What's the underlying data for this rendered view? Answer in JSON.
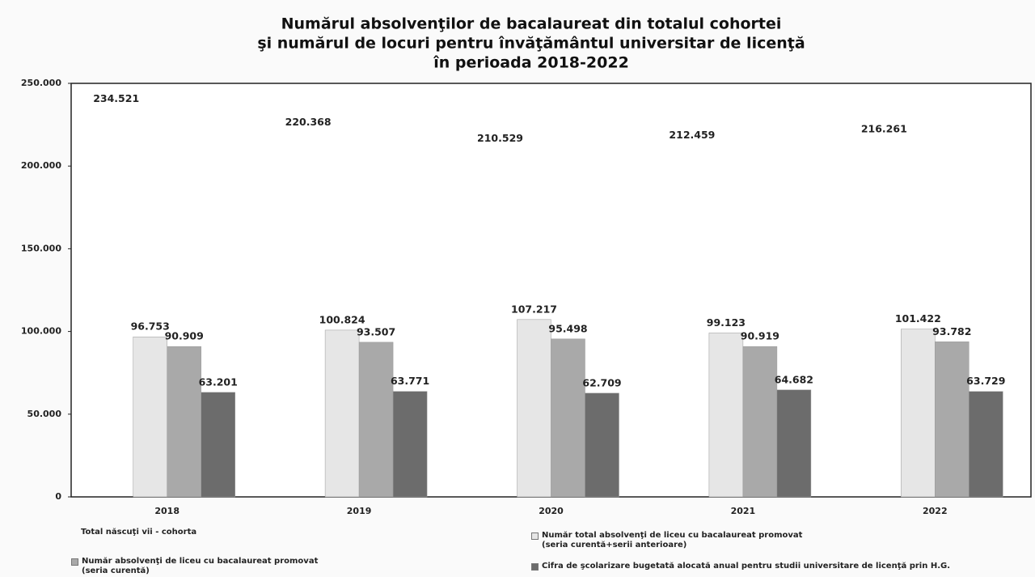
{
  "chart_data": {
    "type": "bar",
    "title": [
      "Numărul absolvenţilor de bacalaureat din totalul cohortei",
      "şi numărul de locuri pentru învăţământul universitar de licenţă",
      "în perioada 2018-2022"
    ],
    "categories": [
      "2018",
      "2019",
      "2020",
      "2021",
      "2022"
    ],
    "series": [
      {
        "name": "Total născuţi vii - cohorta",
        "color": "none",
        "values": [
          234521,
          220368,
          210529,
          212459,
          216261
        ],
        "value_labels": [
          "234.521",
          "220.368",
          "210.529",
          "212.459",
          "216.261"
        ]
      },
      {
        "name": "Număr total absolvenţi de liceu cu bacalaureat promovat\n(seria curentă+serii anterioare)",
        "color": "#e6e6e6",
        "values": [
          96753,
          100824,
          107217,
          99123,
          101422
        ],
        "value_labels": [
          "96.753",
          "100.824",
          "107.217",
          "99.123",
          "101.422"
        ]
      },
      {
        "name": "Număr absolvenţi de liceu cu bacalaureat promovat\n(seria curentă)",
        "color": "#a9a9a9",
        "values": [
          90909,
          93507,
          95498,
          90919,
          93782
        ],
        "value_labels": [
          "90.909",
          "93.507",
          "95.498",
          "90.919",
          "93.782"
        ]
      },
      {
        "name": "Cifra de şcolarizare bugetată alocată anual pentru studii universitare de licenţă prin H.G.",
        "color": "#6c6c6c",
        "values": [
          63201,
          63771,
          62709,
          64682,
          63729
        ],
        "value_labels": [
          "63.201",
          "63.771",
          "62.709",
          "64.682",
          "63.729"
        ]
      }
    ],
    "ylim": [
      0,
      250000
    ],
    "yticks": [
      0,
      {
        "value": 50000,
        "label": "50.000"
      },
      {
        "value": 100000,
        "label": "100.000"
      },
      {
        "value": 150000,
        "label": "150.000"
      },
      {
        "value": 200000,
        "label": "200.000"
      },
      {
        "value": 250000,
        "label": "250.000"
      }
    ],
    "grid": false
  }
}
